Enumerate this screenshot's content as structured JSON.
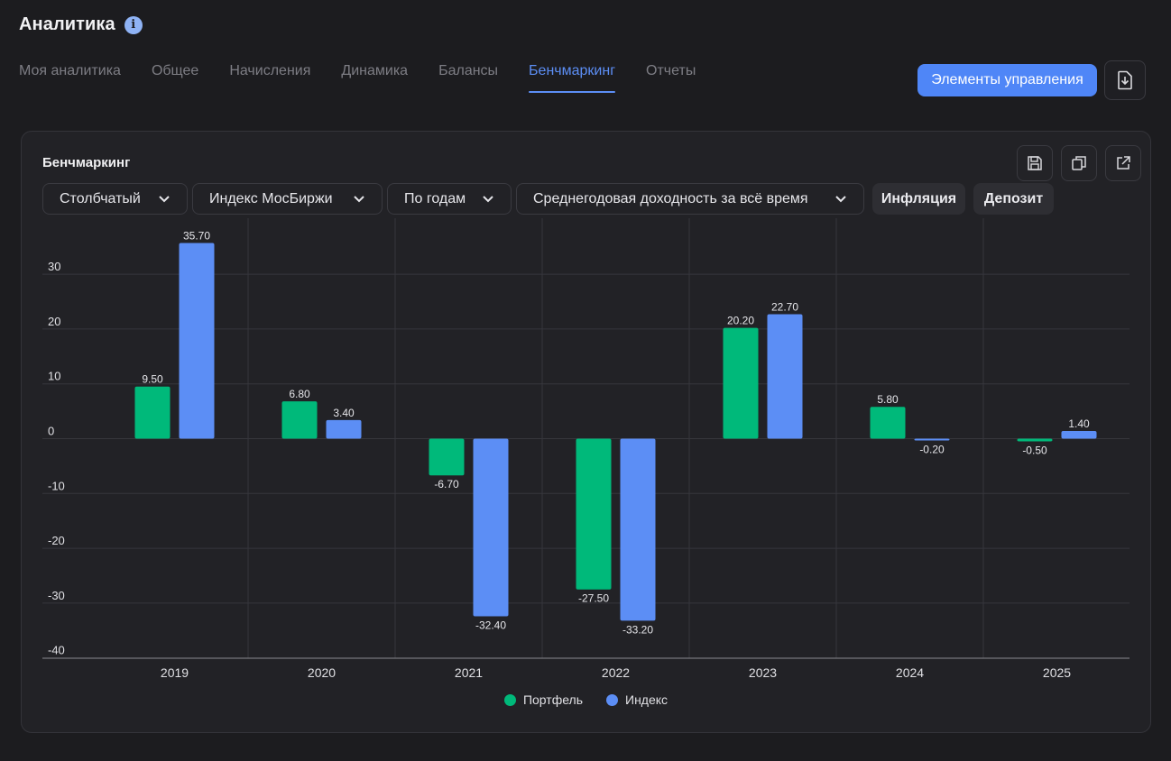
{
  "page": {
    "title": "Аналитика",
    "info_icon": "info-icon",
    "tabs": [
      {
        "label": "Моя аналитика",
        "active": false
      },
      {
        "label": "Общее",
        "active": false
      },
      {
        "label": "Начисления",
        "active": false
      },
      {
        "label": "Динамика",
        "active": false
      },
      {
        "label": "Балансы",
        "active": false
      },
      {
        "label": "Бенчмаркинг",
        "active": true
      },
      {
        "label": "Отчеты",
        "active": false
      }
    ],
    "controls_button": "Элементы управления",
    "export_icon": "download-file-icon"
  },
  "card": {
    "title": "Бенчмаркинг",
    "icons": [
      "save-icon",
      "copy-icon",
      "open-external-icon"
    ],
    "dropdowns": [
      {
        "label": "Столбчатый"
      },
      {
        "label": "Индекс МосБиржи"
      },
      {
        "label": "По годам"
      },
      {
        "label": "Среднегодовая доходность за всё время"
      }
    ],
    "toggles": [
      {
        "label": "Инфляция"
      },
      {
        "label": "Депозит"
      }
    ]
  },
  "colors": {
    "accent": "#4f86f7",
    "portfolio": "#00b97a",
    "index": "#5c8ef5"
  },
  "chart_data": {
    "type": "bar",
    "categories": [
      "2019",
      "2020",
      "2021",
      "2022",
      "2023",
      "2024",
      "2025"
    ],
    "series": [
      {
        "name": "Портфель",
        "color": "#00b97a",
        "values": [
          9.5,
          6.8,
          -6.7,
          -27.5,
          20.2,
          5.8,
          -0.5
        ],
        "labels": [
          "9.50",
          "6.80",
          "-6.70",
          "-27.50",
          "20.20",
          "5.80",
          "-0.50"
        ]
      },
      {
        "name": "Индекс",
        "color": "#5c8ef5",
        "values": [
          35.7,
          3.4,
          -32.4,
          -33.2,
          22.7,
          -0.2,
          1.4
        ],
        "labels": [
          "35.70",
          "3.40",
          "-32.40",
          "-33.20",
          "22.70",
          "-0.20",
          "1.40"
        ]
      }
    ],
    "y_ticks": [
      "30",
      "20",
      "10",
      "0",
      "-10",
      "-20",
      "-30",
      "-40"
    ],
    "y_tick_values": [
      30,
      20,
      10,
      0,
      -10,
      -20,
      -30,
      -40
    ],
    "ylim": [
      -40,
      40
    ],
    "grid": true,
    "legend_position": "bottom-center"
  }
}
